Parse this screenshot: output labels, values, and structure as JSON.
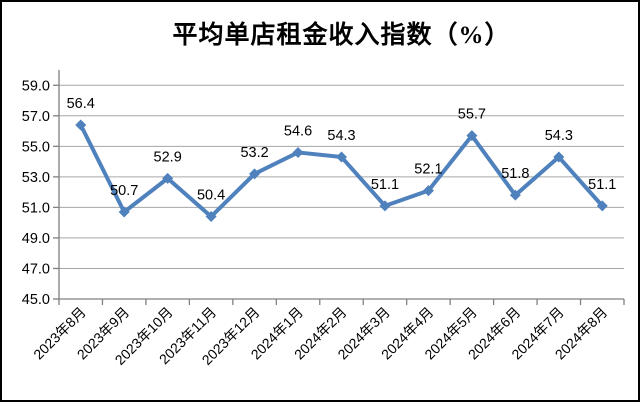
{
  "chart": {
    "accent_color": "#4F81BD",
    "gridline_color": "#A6A6A6",
    "axis_color": "#808080",
    "text_color": "#000000",
    "background_color": "#FFFFFF"
  },
  "chart_data": {
    "type": "line",
    "title": "平均单店租金收入指数（%）",
    "categories": [
      "2023年8月",
      "2023年9月",
      "2023年10月",
      "2023年11月",
      "2023年12月",
      "2024年1月",
      "2024年2月",
      "2024年3月",
      "2024年4月",
      "2024年5月",
      "2024年6月",
      "2024年7月",
      "2024年8月"
    ],
    "values": [
      56.4,
      50.7,
      52.9,
      50.4,
      53.2,
      54.6,
      54.3,
      51.1,
      52.1,
      55.7,
      51.8,
      54.3,
      51.1
    ],
    "data_labels": [
      "56.4",
      "50.7",
      "52.9",
      "50.4",
      "53.2",
      "54.6",
      "54.3",
      "51.1",
      "52.1",
      "55.7",
      "51.8",
      "54.3",
      "51.1"
    ],
    "xlabel": "",
    "ylabel": "",
    "ylim": [
      45.0,
      60.0
    ],
    "ytick_labels": [
      "45.0",
      "47.0",
      "49.0",
      "51.0",
      "53.0",
      "55.0",
      "57.0",
      "59.0"
    ],
    "ytick_step": 2.0,
    "grid": true,
    "legend": false,
    "marker": "diamond",
    "series_color": "#4F81BD"
  }
}
